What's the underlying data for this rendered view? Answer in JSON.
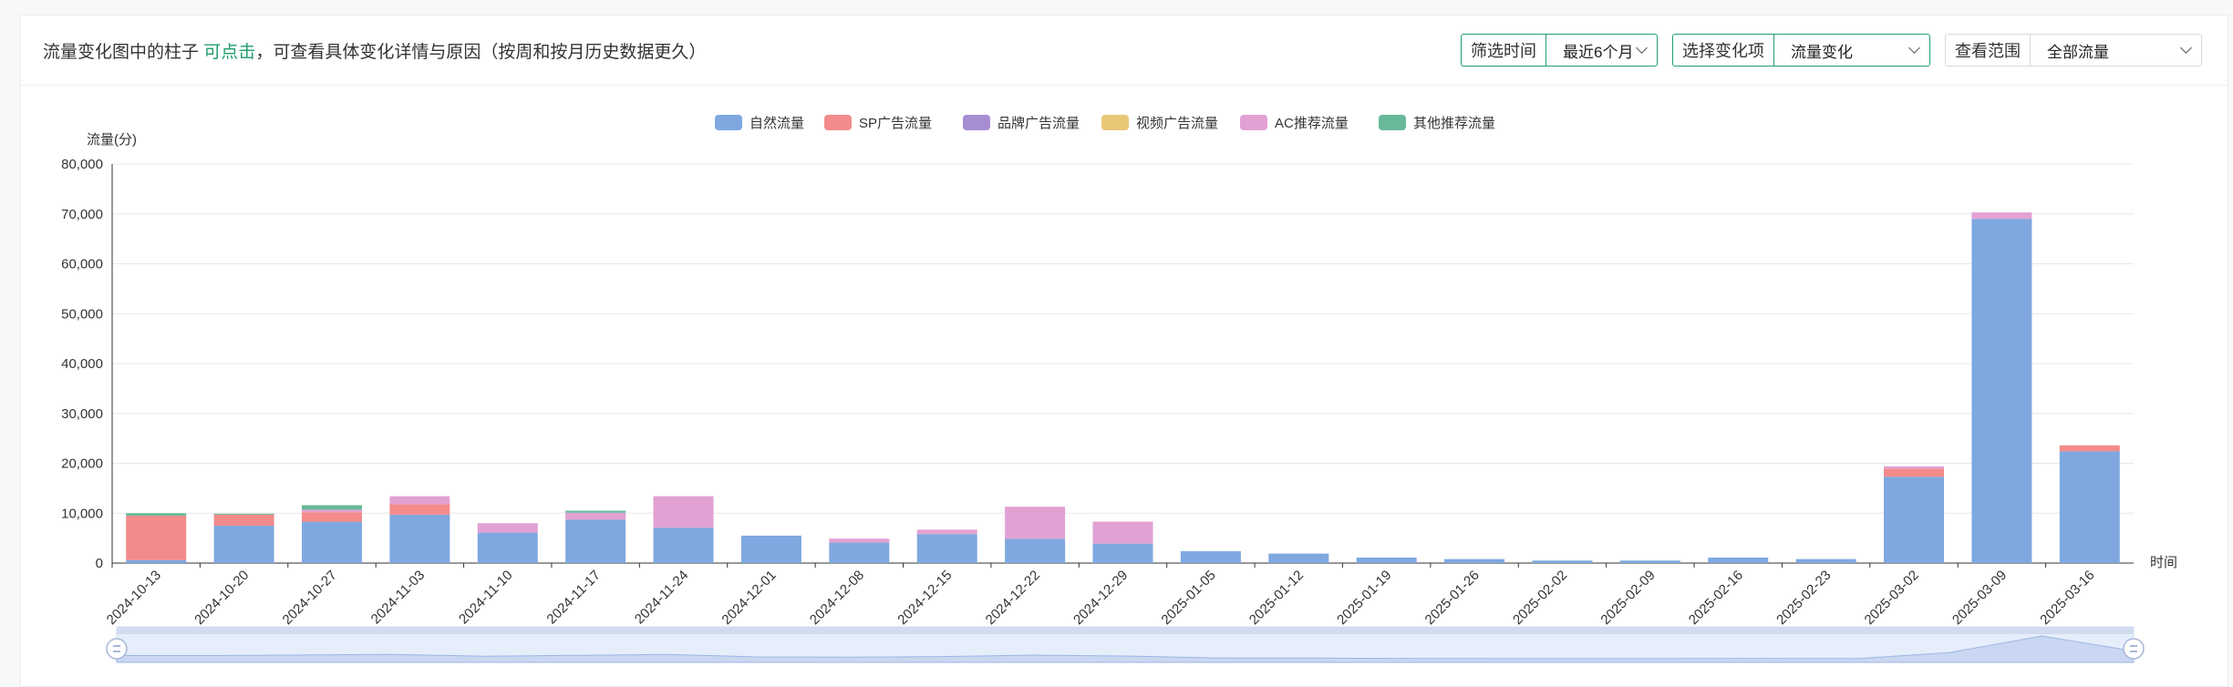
{
  "notice": {
    "prefix": "流量变化图中的柱子",
    "link": "可点击",
    "suffix": "，可查看具体变化详情与原因（按周和按月历史数据更久）"
  },
  "filters": [
    {
      "label": "筛选时间",
      "value": "最近6个月",
      "active": true
    },
    {
      "label": "选择变化项",
      "value": "流量变化",
      "active": true
    },
    {
      "label": "查看范围",
      "value": "全部流量",
      "active": false
    }
  ],
  "chart_data": {
    "type": "bar",
    "stacked": true,
    "title": "",
    "ylabel": "流量(分)",
    "xlabel": "时间",
    "ylim": [
      0,
      80000
    ],
    "yticks": [
      0,
      10000,
      20000,
      30000,
      40000,
      50000,
      60000,
      70000,
      80000
    ],
    "ytick_labels": [
      "0",
      "10,000",
      "20,000",
      "30,000",
      "40,000",
      "50,000",
      "60,000",
      "70,000",
      "80,000"
    ],
    "grid": true,
    "legend_position": "top-center",
    "categories": [
      "2024-10-13",
      "2024-10-20",
      "2024-10-27",
      "2024-11-03",
      "2024-11-10",
      "2024-11-17",
      "2024-11-24",
      "2024-12-01",
      "2024-12-08",
      "2024-12-15",
      "2024-12-22",
      "2024-12-29",
      "2025-01-05",
      "2025-01-12",
      "2025-01-19",
      "2025-01-26",
      "2025-02-02",
      "2025-02-09",
      "2025-02-16",
      "2025-02-23",
      "2025-03-02",
      "2025-03-09",
      "2025-03-16"
    ],
    "series": [
      {
        "name": "自然流量",
        "color": "#7fa8e0",
        "values": [
          600,
          7500,
          8300,
          9700,
          6100,
          8700,
          7100,
          5500,
          4100,
          5800,
          4900,
          3900,
          2400,
          1900,
          1100,
          800,
          500,
          500,
          1100,
          800,
          17300,
          69000,
          22400
        ]
      },
      {
        "name": "SP广告流量",
        "color": "#f38b8b",
        "values": [
          8900,
          2200,
          1900,
          2100,
          0,
          0,
          0,
          0,
          0,
          0,
          0,
          0,
          0,
          0,
          0,
          0,
          0,
          0,
          0,
          0,
          1600,
          0,
          1200
        ]
      },
      {
        "name": "品牌广告流量",
        "color": "#a78ed3",
        "values": [
          0,
          0,
          0,
          0,
          0,
          0,
          0,
          0,
          0,
          0,
          0,
          0,
          0,
          0,
          0,
          0,
          0,
          0,
          0,
          0,
          0,
          0,
          0
        ]
      },
      {
        "name": "视频广告流量",
        "color": "#eac777",
        "values": [
          0,
          0,
          0,
          0,
          0,
          0,
          0,
          0,
          0,
          0,
          0,
          0,
          0,
          0,
          0,
          0,
          0,
          0,
          0,
          0,
          0,
          0,
          0
        ]
      },
      {
        "name": "AC推荐流量",
        "color": "#e2a1d3",
        "values": [
          0,
          0,
          500,
          1600,
          1900,
          1400,
          6300,
          0,
          800,
          900,
          6400,
          4400,
          0,
          0,
          0,
          0,
          0,
          0,
          0,
          0,
          500,
          1300,
          0
        ]
      },
      {
        "name": "其他推荐流量",
        "color": "#67b99a",
        "values": [
          500,
          200,
          900,
          0,
          0,
          400,
          0,
          0,
          0,
          0,
          0,
          0,
          0,
          0,
          0,
          0,
          0,
          0,
          0,
          0,
          0,
          0,
          0
        ]
      }
    ]
  }
}
